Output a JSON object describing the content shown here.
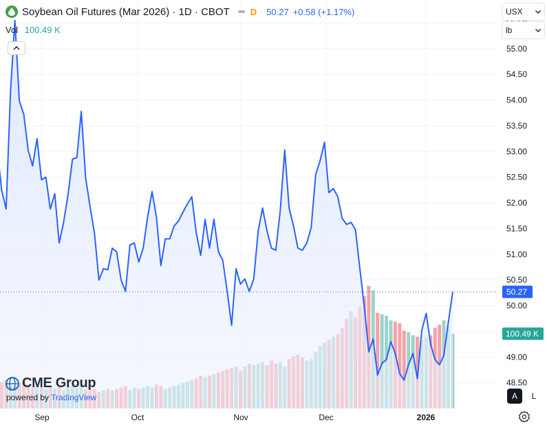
{
  "header": {
    "title": "Soybean Oil Futures (Mar 2026) · 1D · CBOT",
    "delayed_badge": "D",
    "last_price": "50.27",
    "change": "+0.58 (+1.17%)",
    "logo_icon": "drop-icon"
  },
  "volume": {
    "label": "Vol",
    "value": "100.49 K"
  },
  "controls": {
    "currency": "USX",
    "unit": "lb",
    "scale_auto": "A",
    "scale_log": "L",
    "collapse_icon": "chevron-up-icon",
    "settings_icon": "gear-icon"
  },
  "branding": {
    "logo": "CME Group",
    "powered_by": "powered by",
    "provider": "TradingView"
  },
  "colors": {
    "line": "#2962ff",
    "area_top": "#dbe6ff",
    "volume_up": "#9fd2cc",
    "volume_down": "#f3a3a7",
    "price_tag": "#2962ff",
    "volume_tag": "#26a69a"
  },
  "chart_data": {
    "type": "line",
    "x_tick_labels": [
      "Sep",
      "Oct",
      "Nov",
      "Dec",
      "2026"
    ],
    "y_tick_labels": [
      "48.50",
      "49.00",
      "49.50",
      "50.00",
      "50.50",
      "51.00",
      "51.50",
      "52.00",
      "52.50",
      "53.00",
      "53.50",
      "54.00",
      "54.50",
      "55.00",
      "55.50"
    ],
    "ylim": [
      48.0,
      55.92
    ],
    "y_label_step": 0.5,
    "last_price_label": "50.27",
    "last_volume_label": "100.49 K",
    "volume_axis_max": 160,
    "series": [
      {
        "values": [
          53.05,
          52.25,
          51.88,
          54.18,
          55.55,
          53.98,
          53.72,
          53.02,
          52.72,
          53.25,
          52.45,
          52.5,
          51.88,
          52.18,
          51.22,
          51.62,
          52.15,
          52.85,
          52.88,
          53.78,
          52.48,
          51.92,
          51.4,
          50.5,
          50.72,
          50.7,
          51.12,
          51.05,
          50.5,
          50.28,
          51.18,
          51.22,
          50.85,
          51.12,
          51.72,
          52.22,
          51.72,
          50.78,
          51.3,
          51.3,
          51.55,
          51.65,
          51.82,
          51.98,
          52.12,
          51.42,
          50.98,
          51.68,
          51.12,
          51.68,
          51.05,
          50.88,
          50.28,
          49.62,
          50.72,
          50.42,
          50.52,
          50.28,
          50.52,
          51.45,
          51.9,
          51.45,
          51.12,
          51.08,
          51.85,
          53.03,
          51.9,
          51.55,
          51.12,
          51.08,
          51.22,
          51.52,
          52.55,
          52.82,
          53.18,
          52.2,
          52.28,
          52.12,
          51.7,
          51.58,
          51.62,
          51.48,
          50.72,
          49.98,
          49.1,
          49.35,
          48.65,
          48.88,
          48.95,
          49.3,
          49.07,
          48.68,
          48.55,
          48.85,
          49.07,
          48.58,
          49.52,
          49.85,
          49.25,
          48.95,
          48.85,
          49.03,
          49.68,
          50.27
        ],
        "volume": [
          40,
          35,
          38,
          30,
          30,
          35,
          36,
          32,
          28,
          30,
          28,
          26,
          30,
          27,
          28,
          25,
          29,
          30,
          27,
          30,
          26,
          24,
          26,
          22,
          24,
          26,
          24,
          26,
          28,
          30,
          25,
          28,
          26,
          28,
          30,
          28,
          32,
          30,
          26,
          28,
          30,
          32,
          34,
          36,
          38,
          40,
          44,
          42,
          44,
          46,
          48,
          50,
          52,
          54,
          56,
          50,
          56,
          60,
          58,
          60,
          62,
          58,
          64,
          60,
          62,
          56,
          66,
          70,
          72,
          68,
          64,
          66,
          76,
          84,
          88,
          92,
          96,
          100,
          108,
          120,
          130,
          122,
          136,
          150,
          164,
          158,
          128,
          126,
          124,
          118,
          116,
          114,
          104,
          102,
          98,
          96,
          92,
          96,
          98,
          108,
          112,
          118,
          110,
          100
        ]
      }
    ]
  }
}
